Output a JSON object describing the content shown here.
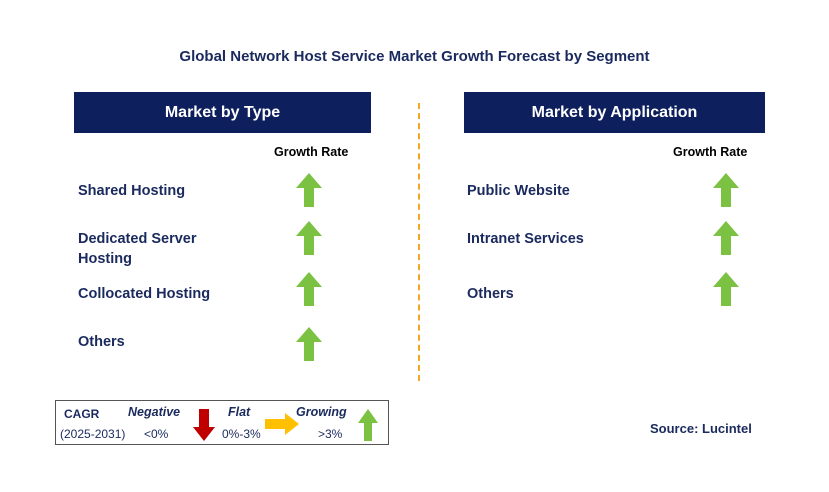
{
  "title": "Global Network Host Service Market Growth Forecast by Segment",
  "left_panel": {
    "header": "Market by Type",
    "growth_label": "Growth Rate",
    "items": [
      {
        "label": "Shared Hosting",
        "trend": "growing"
      },
      {
        "label": "Dedicated Server Hosting",
        "trend": "growing"
      },
      {
        "label": "Collocated Hosting",
        "trend": "growing"
      },
      {
        "label": "Others",
        "trend": "growing"
      }
    ]
  },
  "right_panel": {
    "header": "Market by Application",
    "growth_label": "Growth Rate",
    "items": [
      {
        "label": "Public Website",
        "trend": "growing"
      },
      {
        "label": "Intranet Services",
        "trend": "growing"
      },
      {
        "label": "Others",
        "trend": "growing"
      }
    ]
  },
  "legend": {
    "cagr_label": "CAGR",
    "period": "(2025-2031)",
    "negative_label": "Negative",
    "negative_range": "<0%",
    "flat_label": "Flat",
    "flat_range": "0%-3%",
    "growing_label": "Growing",
    "growing_range": ">3%"
  },
  "source": "Source: Lucintel",
  "colors": {
    "header_bg": "#0d1f5c",
    "text": "#1a2a5e",
    "growing": "#7cc242",
    "negative": "#c00000",
    "flat": "#ffc000",
    "divider": "#f5a623"
  }
}
